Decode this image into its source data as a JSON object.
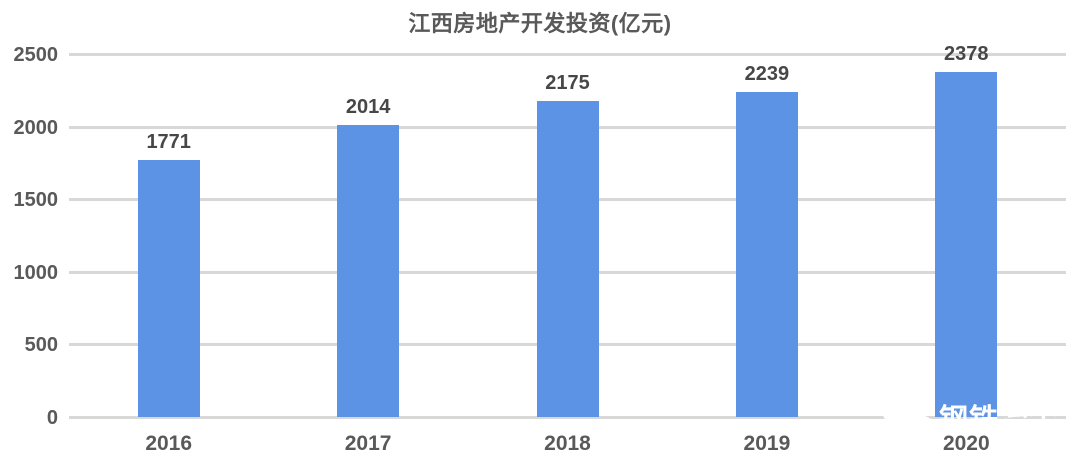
{
  "chart_data": {
    "type": "bar",
    "title": "江西房地产开发投资(亿元)",
    "categories": [
      "2016",
      "2017",
      "2018",
      "2019",
      "2020"
    ],
    "values": [
      1771,
      2014,
      2175,
      2239,
      2378
    ],
    "xlabel": "",
    "ylabel": "",
    "ylim": [
      0,
      2500
    ],
    "ytick_interval": 500,
    "yticks": [
      2500,
      2000,
      1500,
      1000,
      500,
      0
    ],
    "grid": true,
    "legend_position": "none",
    "bar_color": "#5C93E4",
    "grid_color": "#D8D8D6",
    "value_label_color": "#474747",
    "axis_label_color": "#595959",
    "title_color": "#595959"
  },
  "watermark": {
    "icon": "wechat-icon",
    "text": "钢铁冶金",
    "color": "#FFFFFF"
  }
}
